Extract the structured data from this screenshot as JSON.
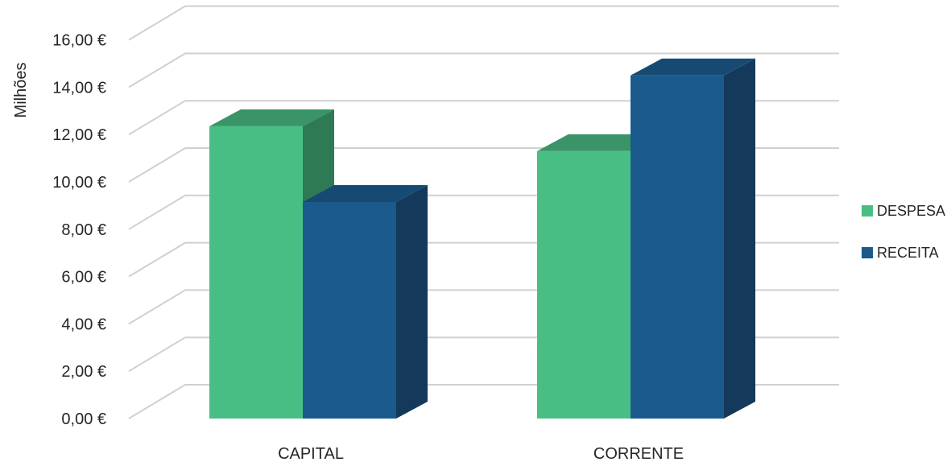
{
  "chart_data": {
    "type": "bar",
    "style": "3d-clustered-column",
    "title": "",
    "xlabel": "",
    "ylabel": "Milhões",
    "categories": [
      "CAPITAL",
      "CORRENTE"
    ],
    "series": [
      {
        "name": "DESPESA",
        "values": [
          12.35,
          11.3
        ],
        "color": "#49BE84",
        "side_color": "#2E7A54",
        "top_color": "#3A9468"
      },
      {
        "name": "RECEITA",
        "values": [
          9.15,
          14.5
        ],
        "color": "#1A5A8C",
        "side_color": "#14395A",
        "top_color": "#174A72"
      }
    ],
    "ylim": [
      0,
      16
    ],
    "yticks": [
      0,
      2,
      4,
      6,
      8,
      10,
      12,
      14,
      16
    ],
    "ytick_labels": [
      "0,00 €",
      "2,00 €",
      "4,00 €",
      "6,00 €",
      "8,00 €",
      "10,00 €",
      "12,00 €",
      "14,00 €",
      "16,00 €"
    ],
    "grid": true,
    "legend_position": "right"
  }
}
